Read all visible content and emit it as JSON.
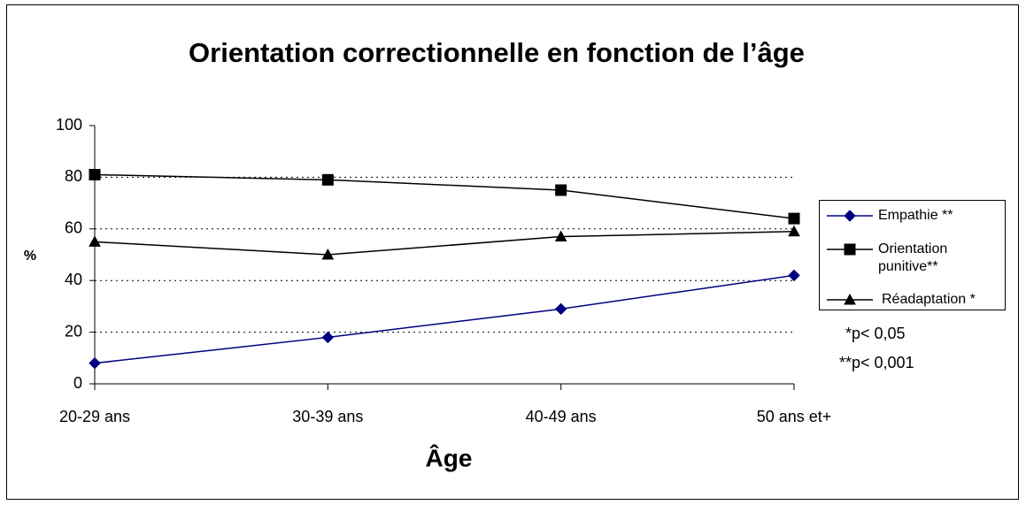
{
  "chart_data": {
    "type": "line",
    "title": "Orientation correctionnelle en fonction de l’âge",
    "x_label": "Âge",
    "y_label": "%",
    "categories": [
      "20-29 ans",
      "30-39 ans",
      "40-49 ans",
      "50 ans et+"
    ],
    "series": [
      {
        "name": "Empathie **",
        "color": "#000080",
        "marker": "diamond",
        "values": [
          8,
          18,
          29,
          42
        ]
      },
      {
        "name": "Orientation punitive**",
        "color": "#000000",
        "marker": "square",
        "values": [
          81,
          79,
          75,
          64
        ]
      },
      {
        "name": "Réadaptation *",
        "color": "#000000",
        "marker": "triangle",
        "values": [
          55,
          50,
          57,
          59
        ]
      }
    ],
    "ylim": [
      0,
      100
    ],
    "yticks": [
      0,
      20,
      40,
      60,
      80,
      100
    ],
    "grid": true,
    "legend": "right",
    "annotations": [
      "*p< 0,05",
      "**p< 0,001"
    ]
  }
}
